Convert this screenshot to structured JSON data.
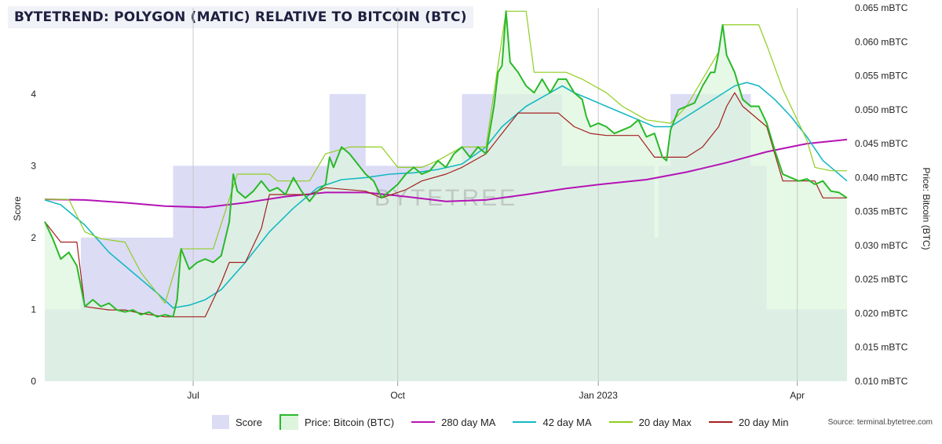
{
  "title": "BYTETREND: POLYGON (MATIC) RELATIVE TO BITCOIN (BTC)",
  "watermark": "BYTETREE",
  "source": "Source: terminal.bytetree.com",
  "colors": {
    "score_fill": "#dcdcf5",
    "price_fill": "#ddf5dd",
    "overlap_fill": "#cfe0dc",
    "price_line": "#29b929",
    "ma280": "#b513b5",
    "ma42": "#16b8c4",
    "max20": "#8fce20",
    "min20": "#a32020"
  },
  "legend": [
    {
      "label": "Score",
      "type": "box",
      "color": "#dcdcf5",
      "edge": ""
    },
    {
      "label": "Price: Bitcoin (BTC)",
      "type": "box",
      "color": "#ddf5dd",
      "edge": "#29b929"
    },
    {
      "label": "280 day MA",
      "type": "line",
      "color": "#b513b5"
    },
    {
      "label": "42 day MA",
      "type": "line",
      "color": "#16b8c4"
    },
    {
      "label": "20 day Max",
      "type": "line",
      "color": "#8fce20"
    },
    {
      "label": "20 day Min",
      "type": "line",
      "color": "#a32020"
    }
  ],
  "chart_data": {
    "type": "line",
    "title": "BYTETREND: POLYGON (MATIC) RELATIVE TO BITCOIN (BTC)",
    "x_ticks": [
      "Jul",
      "Oct",
      "Jan 2023",
      "Apr"
    ],
    "x_tick_pos": [
      0.185,
      0.44,
      0.69,
      0.938
    ],
    "ylabel_left": "Score",
    "ylabel_right": "Price: Bitcoin (BTC)",
    "y_left_ticks": [
      "0",
      "1",
      "2",
      "3",
      "4"
    ],
    "y_left_range": [
      0,
      5.2
    ],
    "y_right_ticks": [
      "0.010 mBTC",
      "0.015 mBTC",
      "0.020 mBTC",
      "0.025 mBTC",
      "0.030 mBTC",
      "0.035 mBTC",
      "0.040 mBTC",
      "0.045 mBTC",
      "0.050 mBTC",
      "0.055 mBTC",
      "0.060 mBTC",
      "0.065 mBTC"
    ],
    "y_right_range": [
      0.01,
      0.065
    ],
    "grid": "vertical",
    "score_steps": [
      [
        0.0,
        1
      ],
      [
        0.045,
        2
      ],
      [
        0.16,
        3
      ],
      [
        0.35,
        3
      ],
      [
        0.355,
        4
      ],
      [
        0.4,
        3
      ],
      [
        0.44,
        3
      ],
      [
        0.52,
        4
      ],
      [
        0.59,
        4
      ],
      [
        0.645,
        3
      ],
      [
        0.705,
        3
      ],
      [
        0.73,
        3
      ],
      [
        0.76,
        2
      ],
      [
        0.765,
        3
      ],
      [
        0.78,
        4
      ],
      [
        0.835,
        4
      ],
      [
        0.88,
        3
      ],
      [
        0.9,
        1
      ],
      [
        1.0,
        1
      ]
    ],
    "series": [
      {
        "name": "Price: Bitcoin (BTC)",
        "points": [
          [
            0.0,
            0.0335
          ],
          [
            0.01,
            0.031
          ],
          [
            0.02,
            0.028
          ],
          [
            0.03,
            0.029
          ],
          [
            0.04,
            0.027
          ],
          [
            0.05,
            0.021
          ],
          [
            0.06,
            0.022
          ],
          [
            0.07,
            0.021
          ],
          [
            0.08,
            0.0215
          ],
          [
            0.09,
            0.0205
          ],
          [
            0.1,
            0.0202
          ],
          [
            0.11,
            0.0205
          ],
          [
            0.12,
            0.0198
          ],
          [
            0.13,
            0.0202
          ],
          [
            0.14,
            0.0195
          ],
          [
            0.15,
            0.0198
          ],
          [
            0.16,
            0.0195
          ],
          [
            0.165,
            0.022
          ],
          [
            0.17,
            0.0295
          ],
          [
            0.18,
            0.0265
          ],
          [
            0.19,
            0.0275
          ],
          [
            0.2,
            0.028
          ],
          [
            0.21,
            0.0275
          ],
          [
            0.22,
            0.0285
          ],
          [
            0.225,
            0.031
          ],
          [
            0.23,
            0.0335
          ],
          [
            0.235,
            0.0405
          ],
          [
            0.24,
            0.038
          ],
          [
            0.25,
            0.037
          ],
          [
            0.26,
            0.038
          ],
          [
            0.27,
            0.0395
          ],
          [
            0.28,
            0.038
          ],
          [
            0.29,
            0.0385
          ],
          [
            0.3,
            0.0375
          ],
          [
            0.31,
            0.04
          ],
          [
            0.32,
            0.038
          ],
          [
            0.33,
            0.0365
          ],
          [
            0.34,
            0.038
          ],
          [
            0.35,
            0.039
          ],
          [
            0.355,
            0.043
          ],
          [
            0.36,
            0.0415
          ],
          [
            0.37,
            0.0445
          ],
          [
            0.38,
            0.0435
          ],
          [
            0.39,
            0.042
          ],
          [
            0.4,
            0.0405
          ],
          [
            0.41,
            0.0395
          ],
          [
            0.42,
            0.037
          ],
          [
            0.43,
            0.038
          ],
          [
            0.44,
            0.039
          ],
          [
            0.45,
            0.0405
          ],
          [
            0.46,
            0.0415
          ],
          [
            0.47,
            0.0405
          ],
          [
            0.48,
            0.041
          ],
          [
            0.49,
            0.0425
          ],
          [
            0.5,
            0.0415
          ],
          [
            0.51,
            0.0435
          ],
          [
            0.52,
            0.0445
          ],
          [
            0.53,
            0.043
          ],
          [
            0.54,
            0.0445
          ],
          [
            0.55,
            0.0435
          ],
          [
            0.56,
            0.0505
          ],
          [
            0.565,
            0.0555
          ],
          [
            0.57,
            0.0565
          ],
          [
            0.575,
            0.0645
          ],
          [
            0.58,
            0.057
          ],
          [
            0.59,
            0.0555
          ],
          [
            0.6,
            0.0535
          ],
          [
            0.61,
            0.0525
          ],
          [
            0.62,
            0.0545
          ],
          [
            0.63,
            0.0525
          ],
          [
            0.64,
            0.0545
          ],
          [
            0.65,
            0.0545
          ],
          [
            0.66,
            0.0525
          ],
          [
            0.67,
            0.0515
          ],
          [
            0.675,
            0.049
          ],
          [
            0.68,
            0.0475
          ],
          [
            0.69,
            0.048
          ],
          [
            0.7,
            0.0475
          ],
          [
            0.71,
            0.0465
          ],
          [
            0.72,
            0.047
          ],
          [
            0.73,
            0.0475
          ],
          [
            0.74,
            0.0485
          ],
          [
            0.75,
            0.046
          ],
          [
            0.76,
            0.0465
          ],
          [
            0.77,
            0.043
          ],
          [
            0.775,
            0.0425
          ],
          [
            0.78,
            0.047
          ],
          [
            0.79,
            0.05
          ],
          [
            0.8,
            0.0505
          ],
          [
            0.81,
            0.051
          ],
          [
            0.82,
            0.0535
          ],
          [
            0.83,
            0.0555
          ],
          [
            0.835,
            0.0555
          ],
          [
            0.84,
            0.0585
          ],
          [
            0.845,
            0.0625
          ],
          [
            0.85,
            0.058
          ],
          [
            0.86,
            0.0555
          ],
          [
            0.865,
            0.0535
          ],
          [
            0.87,
            0.0515
          ],
          [
            0.88,
            0.0505
          ],
          [
            0.89,
            0.0505
          ],
          [
            0.9,
            0.048
          ],
          [
            0.91,
            0.044
          ],
          [
            0.92,
            0.0405
          ],
          [
            0.93,
            0.04
          ],
          [
            0.94,
            0.0395
          ],
          [
            0.95,
            0.0398
          ],
          [
            0.96,
            0.039
          ],
          [
            0.97,
            0.0395
          ],
          [
            0.98,
            0.038
          ],
          [
            0.99,
            0.0378
          ],
          [
            1.0,
            0.037
          ]
        ]
      },
      {
        "name": "280 day MA",
        "points": [
          [
            0.0,
            0.0368
          ],
          [
            0.05,
            0.0367
          ],
          [
            0.1,
            0.0363
          ],
          [
            0.15,
            0.0358
          ],
          [
            0.2,
            0.0356
          ],
          [
            0.25,
            0.0363
          ],
          [
            0.3,
            0.0372
          ],
          [
            0.35,
            0.0378
          ],
          [
            0.4,
            0.0378
          ],
          [
            0.45,
            0.0372
          ],
          [
            0.5,
            0.0365
          ],
          [
            0.55,
            0.0367
          ],
          [
            0.6,
            0.0375
          ],
          [
            0.65,
            0.0384
          ],
          [
            0.7,
            0.0391
          ],
          [
            0.75,
            0.0397
          ],
          [
            0.8,
            0.0408
          ],
          [
            0.85,
            0.0422
          ],
          [
            0.9,
            0.0438
          ],
          [
            0.95,
            0.045
          ],
          [
            1.0,
            0.0456
          ]
        ]
      },
      {
        "name": "42 day MA",
        "points": [
          [
            0.0,
            0.0367
          ],
          [
            0.02,
            0.036
          ],
          [
            0.05,
            0.033
          ],
          [
            0.08,
            0.029
          ],
          [
            0.11,
            0.026
          ],
          [
            0.14,
            0.023
          ],
          [
            0.16,
            0.0208
          ],
          [
            0.18,
            0.0212
          ],
          [
            0.2,
            0.022
          ],
          [
            0.22,
            0.0235
          ],
          [
            0.25,
            0.0275
          ],
          [
            0.28,
            0.032
          ],
          [
            0.31,
            0.0355
          ],
          [
            0.34,
            0.0385
          ],
          [
            0.37,
            0.0397
          ],
          [
            0.4,
            0.04
          ],
          [
            0.43,
            0.0405
          ],
          [
            0.46,
            0.0407
          ],
          [
            0.49,
            0.0412
          ],
          [
            0.52,
            0.042
          ],
          [
            0.55,
            0.0445
          ],
          [
            0.57,
            0.0475
          ],
          [
            0.6,
            0.0505
          ],
          [
            0.63,
            0.0525
          ],
          [
            0.645,
            0.0535
          ],
          [
            0.66,
            0.0525
          ],
          [
            0.68,
            0.0515
          ],
          [
            0.7,
            0.0505
          ],
          [
            0.72,
            0.0495
          ],
          [
            0.74,
            0.0485
          ],
          [
            0.76,
            0.0475
          ],
          [
            0.78,
            0.0475
          ],
          [
            0.8,
            0.049
          ],
          [
            0.82,
            0.0505
          ],
          [
            0.84,
            0.052
          ],
          [
            0.86,
            0.0535
          ],
          [
            0.875,
            0.054
          ],
          [
            0.89,
            0.0535
          ],
          [
            0.91,
            0.0515
          ],
          [
            0.93,
            0.049
          ],
          [
            0.95,
            0.046
          ],
          [
            0.97,
            0.0425
          ],
          [
            0.99,
            0.0405
          ],
          [
            1.0,
            0.0395
          ]
        ]
      },
      {
        "name": "20 day Max",
        "points": [
          [
            0.0,
            0.0368
          ],
          [
            0.03,
            0.0368
          ],
          [
            0.05,
            0.032
          ],
          [
            0.07,
            0.031
          ],
          [
            0.1,
            0.0305
          ],
          [
            0.12,
            0.026
          ],
          [
            0.15,
            0.0215
          ],
          [
            0.17,
            0.0295
          ],
          [
            0.21,
            0.0295
          ],
          [
            0.24,
            0.0405
          ],
          [
            0.28,
            0.0405
          ],
          [
            0.29,
            0.0395
          ],
          [
            0.33,
            0.0395
          ],
          [
            0.35,
            0.0435
          ],
          [
            0.38,
            0.0445
          ],
          [
            0.42,
            0.0445
          ],
          [
            0.44,
            0.0415
          ],
          [
            0.47,
            0.0415
          ],
          [
            0.49,
            0.0425
          ],
          [
            0.52,
            0.0445
          ],
          [
            0.55,
            0.0445
          ],
          [
            0.575,
            0.0645
          ],
          [
            0.6,
            0.0645
          ],
          [
            0.61,
            0.0555
          ],
          [
            0.65,
            0.0555
          ],
          [
            0.67,
            0.0545
          ],
          [
            0.7,
            0.0525
          ],
          [
            0.72,
            0.0505
          ],
          [
            0.75,
            0.0485
          ],
          [
            0.78,
            0.048
          ],
          [
            0.8,
            0.0505
          ],
          [
            0.82,
            0.0545
          ],
          [
            0.84,
            0.0585
          ],
          [
            0.845,
            0.0625
          ],
          [
            0.89,
            0.0625
          ],
          [
            0.9,
            0.0595
          ],
          [
            0.92,
            0.053
          ],
          [
            0.95,
            0.0455
          ],
          [
            0.96,
            0.0415
          ],
          [
            0.98,
            0.041
          ],
          [
            1.0,
            0.041
          ]
        ]
      },
      {
        "name": "20 day Min",
        "points": [
          [
            0.0,
            0.0335
          ],
          [
            0.02,
            0.0305
          ],
          [
            0.04,
            0.0305
          ],
          [
            0.05,
            0.021
          ],
          [
            0.08,
            0.0205
          ],
          [
            0.1,
            0.0205
          ],
          [
            0.12,
            0.02
          ],
          [
            0.15,
            0.0195
          ],
          [
            0.2,
            0.0195
          ],
          [
            0.22,
            0.0245
          ],
          [
            0.23,
            0.0275
          ],
          [
            0.25,
            0.0275
          ],
          [
            0.27,
            0.0325
          ],
          [
            0.28,
            0.0375
          ],
          [
            0.33,
            0.0375
          ],
          [
            0.35,
            0.0385
          ],
          [
            0.4,
            0.038
          ],
          [
            0.42,
            0.037
          ],
          [
            0.45,
            0.0382
          ],
          [
            0.47,
            0.0395
          ],
          [
            0.5,
            0.0405
          ],
          [
            0.52,
            0.0415
          ],
          [
            0.55,
            0.0435
          ],
          [
            0.57,
            0.0465
          ],
          [
            0.59,
            0.0495
          ],
          [
            0.64,
            0.0495
          ],
          [
            0.66,
            0.0475
          ],
          [
            0.68,
            0.0465
          ],
          [
            0.7,
            0.0462
          ],
          [
            0.74,
            0.0462
          ],
          [
            0.76,
            0.043
          ],
          [
            0.8,
            0.043
          ],
          [
            0.82,
            0.0445
          ],
          [
            0.84,
            0.0475
          ],
          [
            0.85,
            0.0505
          ],
          [
            0.86,
            0.0525
          ],
          [
            0.87,
            0.0505
          ],
          [
            0.9,
            0.0475
          ],
          [
            0.92,
            0.0395
          ],
          [
            0.96,
            0.0395
          ],
          [
            0.97,
            0.037
          ],
          [
            1.0,
            0.037
          ]
        ]
      }
    ]
  }
}
